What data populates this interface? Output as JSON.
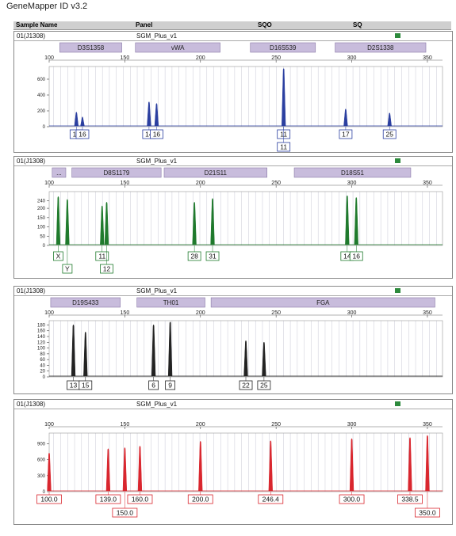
{
  "app": {
    "title": "GeneMapper ID v3.2"
  },
  "header": {
    "sample_name": "Sample Name",
    "panel": "Panel",
    "sqo": "SQO",
    "sq": "SQ"
  },
  "colors": {
    "blue": "#2b3fa0",
    "green": "#1f7a2c",
    "black": "#222222",
    "red": "#d9262e",
    "marker": "#c8bcdc",
    "grid": "#c9c9d6",
    "status": "#2d8a3c"
  },
  "panels": [
    {
      "sample": "01(J1308)",
      "panel": "SGM_Plus_v1",
      "color": "#2b3fa0",
      "chart_data": {
        "type": "line",
        "xlim": [
          100,
          360
        ],
        "ylim": [
          0,
          760
        ],
        "xticks": [
          100,
          150,
          200,
          250,
          300,
          350
        ],
        "yticks": [
          0,
          200,
          400,
          600
        ],
        "markers": [
          {
            "label": "D3S1358",
            "start": 107,
            "end": 148
          },
          {
            "label": "vWA",
            "start": 157,
            "end": 213
          },
          {
            "label": "D16S539",
            "start": 233,
            "end": 276
          },
          {
            "label": "D2S1338",
            "start": 289,
            "end": 349
          }
        ],
        "peaks": [
          {
            "x": 118,
            "y": 200
          },
          {
            "x": 122,
            "y": 140
          },
          {
            "x": 166,
            "y": 330
          },
          {
            "x": 171,
            "y": 310
          },
          {
            "x": 255,
            "y": 750
          },
          {
            "x": 296,
            "y": 240
          },
          {
            "x": 325,
            "y": 190
          }
        ],
        "labels": [
          {
            "x": 118,
            "row": 0,
            "text": "14"
          },
          {
            "x": 122,
            "row": 0,
            "text": "16"
          },
          {
            "x": 166,
            "row": 0,
            "text": "14"
          },
          {
            "x": 171,
            "row": 0,
            "text": "16"
          },
          {
            "x": 255,
            "row": 0,
            "text": "11"
          },
          {
            "x": 255,
            "row": 1,
            "text": "11"
          },
          {
            "x": 296,
            "row": 0,
            "text": "17"
          },
          {
            "x": 325,
            "row": 0,
            "text": "25"
          }
        ]
      }
    },
    {
      "sample": "01(J1308)",
      "panel": "SGM_Plus_v1",
      "color": "#1f7a2c",
      "chart_data": {
        "type": "line",
        "xlim": [
          100,
          360
        ],
        "ylim": [
          0,
          290
        ],
        "xticks": [
          100,
          150,
          200,
          250,
          300,
          350
        ],
        "yticks": [
          0,
          50,
          100,
          150,
          200,
          240
        ],
        "markers": [
          {
            "label": "...",
            "start": 102,
            "end": 111
          },
          {
            "label": "D8S1179",
            "start": 115,
            "end": 174
          },
          {
            "label": "D21S11",
            "start": 176,
            "end": 244
          },
          {
            "label": "D18S51",
            "start": 262,
            "end": 339
          }
        ],
        "peaks": [
          {
            "x": 106,
            "y": 270
          },
          {
            "x": 112,
            "y": 255
          },
          {
            "x": 135,
            "y": 220
          },
          {
            "x": 138,
            "y": 240
          },
          {
            "x": 196,
            "y": 240
          },
          {
            "x": 208,
            "y": 260
          },
          {
            "x": 297,
            "y": 275
          },
          {
            "x": 303,
            "y": 265
          }
        ],
        "labels": [
          {
            "x": 106,
            "row": 0,
            "text": "X"
          },
          {
            "x": 112,
            "row": 1,
            "text": "Y"
          },
          {
            "x": 135,
            "row": 0,
            "text": "11"
          },
          {
            "x": 138,
            "row": 1,
            "text": "12"
          },
          {
            "x": 196,
            "row": 0,
            "text": "28"
          },
          {
            "x": 208,
            "row": 0,
            "text": "31"
          },
          {
            "x": 297,
            "row": 0,
            "text": "14"
          },
          {
            "x": 303,
            "row": 0,
            "text": "16"
          }
        ]
      }
    },
    {
      "sample": "01(J1308)",
      "panel": "SGM_Plus_v1",
      "color": "#222222",
      "chart_data": {
        "type": "line",
        "xlim": [
          100,
          360
        ],
        "ylim": [
          0,
          195
        ],
        "xticks": [
          100,
          150,
          200,
          250,
          300,
          350
        ],
        "yticks": [
          0,
          20,
          40,
          60,
          80,
          100,
          120,
          140,
          160,
          180
        ],
        "markers": [
          {
            "label": "D19S433",
            "start": 101,
            "end": 147
          },
          {
            "label": "TH01",
            "start": 158,
            "end": 203
          },
          {
            "label": "FGA",
            "start": 207,
            "end": 355
          }
        ],
        "peaks": [
          {
            "x": 116,
            "y": 185
          },
          {
            "x": 124,
            "y": 160
          },
          {
            "x": 169,
            "y": 185
          },
          {
            "x": 180,
            "y": 195
          },
          {
            "x": 230,
            "y": 130
          },
          {
            "x": 242,
            "y": 125
          }
        ],
        "labels": [
          {
            "x": 116,
            "row": 0,
            "text": "13"
          },
          {
            "x": 124,
            "row": 0,
            "text": "15"
          },
          {
            "x": 169,
            "row": 0,
            "text": "6"
          },
          {
            "x": 180,
            "row": 0,
            "text": "9"
          },
          {
            "x": 230,
            "row": 0,
            "text": "22"
          },
          {
            "x": 242,
            "row": 0,
            "text": "25"
          }
        ]
      }
    },
    {
      "sample": "01(J1308)",
      "panel": "SGM_Plus_v1",
      "color": "#d9262e",
      "chart_data": {
        "type": "line",
        "xlim": [
          100,
          360
        ],
        "ylim": [
          0,
          1100
        ],
        "xticks": [
          100,
          150,
          200,
          250,
          300,
          350
        ],
        "yticks": [
          0,
          300,
          600,
          900
        ],
        "markers": [],
        "peaks": [
          {
            "x": 100,
            "y": 750
          },
          {
            "x": 139,
            "y": 830
          },
          {
            "x": 150,
            "y": 850
          },
          {
            "x": 160,
            "y": 880
          },
          {
            "x": 200,
            "y": 970
          },
          {
            "x": 246.4,
            "y": 980
          },
          {
            "x": 300,
            "y": 1020
          },
          {
            "x": 338.5,
            "y": 1040
          },
          {
            "x": 350,
            "y": 1080
          }
        ],
        "labels": [
          {
            "x": 100,
            "row": 0,
            "text": "100.0"
          },
          {
            "x": 139,
            "row": 0,
            "text": "139.0"
          },
          {
            "x": 150,
            "row": 1,
            "text": "150.0"
          },
          {
            "x": 160,
            "row": 0,
            "text": "160.0"
          },
          {
            "x": 200,
            "row": 0,
            "text": "200.0"
          },
          {
            "x": 246.4,
            "row": 0,
            "text": "246.4"
          },
          {
            "x": 300,
            "row": 0,
            "text": "300.0"
          },
          {
            "x": 338.5,
            "row": 0,
            "text": "338.5"
          },
          {
            "x": 350,
            "row": 1,
            "text": "350.0"
          }
        ]
      }
    }
  ]
}
